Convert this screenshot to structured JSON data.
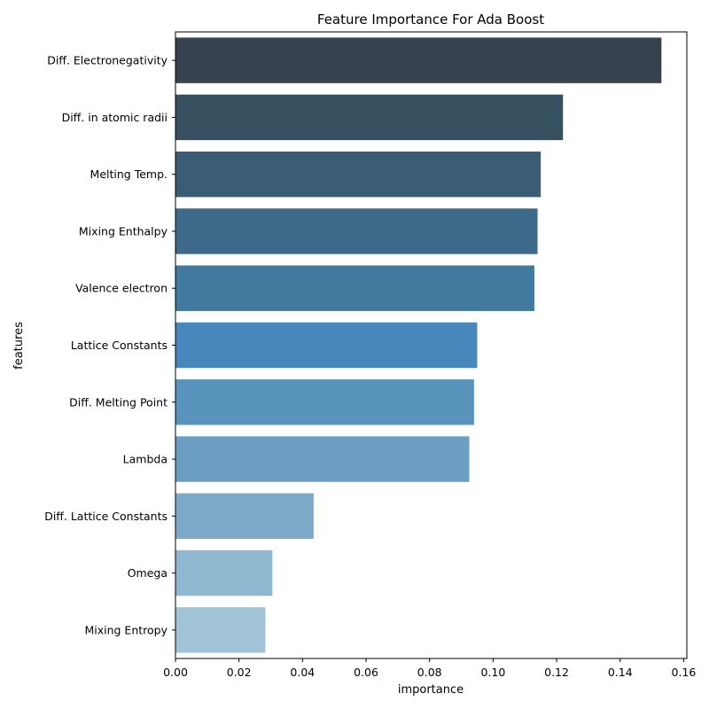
{
  "chart_data": {
    "type": "bar",
    "orientation": "horizontal",
    "title": "Feature Importance For Ada Boost",
    "xlabel": "importance",
    "ylabel": "features",
    "xlim": [
      0,
      0.161
    ],
    "xticks": [
      "0.00",
      "0.02",
      "0.04",
      "0.06",
      "0.08",
      "0.10",
      "0.12",
      "0.14",
      "0.16"
    ],
    "grid": false,
    "categories": [
      "Diff. Electronegativity",
      "Diff. in atomic radii",
      "Melting Temp.",
      "Mixing Enthalpy",
      "Valence electron",
      "Lattice Constants",
      "Diff. Melting Point",
      "Lambda",
      "Diff. Lattice Constants",
      "Omega",
      "Mixing Entropy"
    ],
    "values": [
      0.153,
      0.122,
      0.115,
      0.114,
      0.113,
      0.095,
      0.094,
      0.0925,
      0.0435,
      0.0305,
      0.0283
    ],
    "colors": [
      "#36434e",
      "#37505f",
      "#3a5d75",
      "#3e6a8a",
      "#42799e",
      "#4787bb",
      "#5893bc",
      "#6b9ec2",
      "#7eaac9",
      "#90b7d0",
      "#a1c3d8"
    ]
  }
}
